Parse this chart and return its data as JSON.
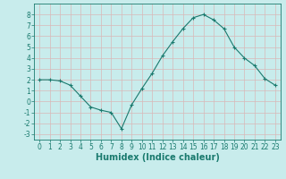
{
  "x": [
    0,
    1,
    2,
    3,
    4,
    5,
    6,
    7,
    8,
    9,
    10,
    11,
    12,
    13,
    14,
    15,
    16,
    17,
    18,
    19,
    20,
    21,
    22,
    23
  ],
  "y": [
    2.0,
    2.0,
    1.9,
    1.5,
    0.5,
    -0.5,
    -0.8,
    -1.0,
    -2.5,
    -0.3,
    1.2,
    2.6,
    4.2,
    5.5,
    6.7,
    7.7,
    8.0,
    7.5,
    6.7,
    5.0,
    4.0,
    3.3,
    2.1,
    1.5
  ],
  "line_color": "#1a7a6e",
  "marker": "+",
  "marker_size": 3,
  "bg_color": "#c8ecec",
  "grid_color": "#d9b8b8",
  "xlabel": "Humidex (Indice chaleur)",
  "ylim": [
    -3.5,
    9.0
  ],
  "xlim": [
    -0.5,
    23.5
  ],
  "yticks": [
    -3,
    -2,
    -1,
    0,
    1,
    2,
    3,
    4,
    5,
    6,
    7,
    8
  ],
  "xticks": [
    0,
    1,
    2,
    3,
    4,
    5,
    6,
    7,
    8,
    9,
    10,
    11,
    12,
    13,
    14,
    15,
    16,
    17,
    18,
    19,
    20,
    21,
    22,
    23
  ],
  "tick_color": "#1a7a6e",
  "label_color": "#1a7a6e",
  "font_size": 5.5,
  "xlabel_font_size": 7
}
